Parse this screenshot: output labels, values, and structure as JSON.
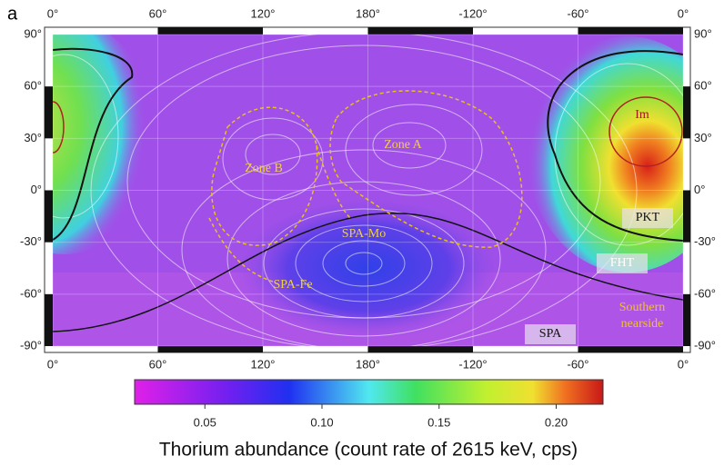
{
  "panel_label": "a",
  "map": {
    "lon_ticks": [
      {
        "value": 0,
        "label": "0°"
      },
      {
        "value": 60,
        "label": "60°"
      },
      {
        "value": 120,
        "label": "120°"
      },
      {
        "value": 180,
        "label": "180°"
      },
      {
        "value": -120,
        "label": "-120°"
      },
      {
        "value": -60,
        "label": "-60°"
      },
      {
        "value": 0,
        "label": "0°"
      }
    ],
    "lat_ticks": [
      {
        "value": 90,
        "label": "90°"
      },
      {
        "value": 60,
        "label": "60°"
      },
      {
        "value": 30,
        "label": "30°"
      },
      {
        "value": 0,
        "label": "0°"
      },
      {
        "value": -30,
        "label": "-30°"
      },
      {
        "value": -60,
        "label": "-60°"
      },
      {
        "value": -90,
        "label": "-90°"
      }
    ],
    "region_labels": {
      "zone_b": "Zone B",
      "zone_a": "Zone A",
      "spa_mo": "SPA-Mo",
      "spa_fe": "SPA-Fe",
      "im": "Im",
      "pkt": "PKT",
      "fht": "FHT",
      "southern_nearside": [
        "Southern",
        "nearside"
      ],
      "spa": "SPA"
    }
  },
  "colorbar": {
    "title": "Thorium abundance (count rate of 2615 keV, cps)",
    "clim": [
      0.02,
      0.22
    ],
    "ticks": [
      0.05,
      {
        "value": 0.1,
        "label": "0.10"
      },
      0.15,
      {
        "value": 0.2,
        "label": "0.20"
      }
    ]
  }
}
